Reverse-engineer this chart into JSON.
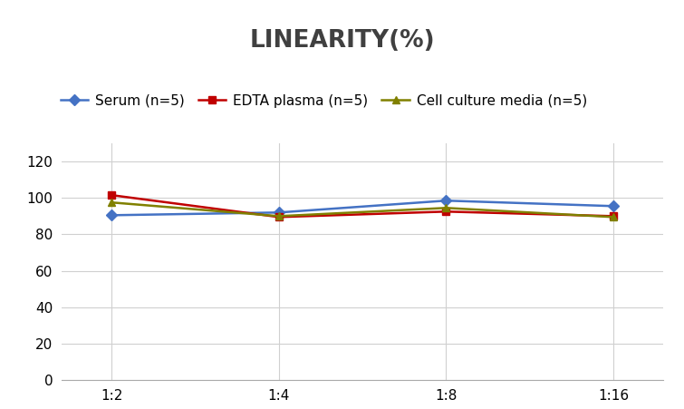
{
  "title": "LINEARITY(%)",
  "title_fontsize": 19,
  "title_fontweight": "bold",
  "x_labels": [
    "1:2",
    "1:4",
    "1:8",
    "1:16"
  ],
  "x_positions": [
    0,
    1,
    2,
    3
  ],
  "series": [
    {
      "label": "Serum (n=5)",
      "values": [
        90.5,
        92.0,
        98.5,
        95.5
      ],
      "color": "#4472C4",
      "marker": "D",
      "markersize": 6,
      "linewidth": 1.8
    },
    {
      "label": "EDTA plasma (n=5)",
      "values": [
        101.5,
        89.5,
        92.5,
        90.0
      ],
      "color": "#C00000",
      "marker": "s",
      "markersize": 6,
      "linewidth": 1.8
    },
    {
      "label": "Cell culture media (n=5)",
      "values": [
        97.5,
        90.0,
        94.5,
        89.5
      ],
      "color": "#808000",
      "marker": "^",
      "markersize": 6,
      "linewidth": 1.8
    }
  ],
  "ylim": [
    0,
    130
  ],
  "yticks": [
    0,
    20,
    40,
    60,
    80,
    100,
    120
  ],
  "background_color": "#ffffff",
  "grid_color": "#d0d0d0",
  "legend_fontsize": 11,
  "axis_fontsize": 11,
  "title_color": "#404040"
}
